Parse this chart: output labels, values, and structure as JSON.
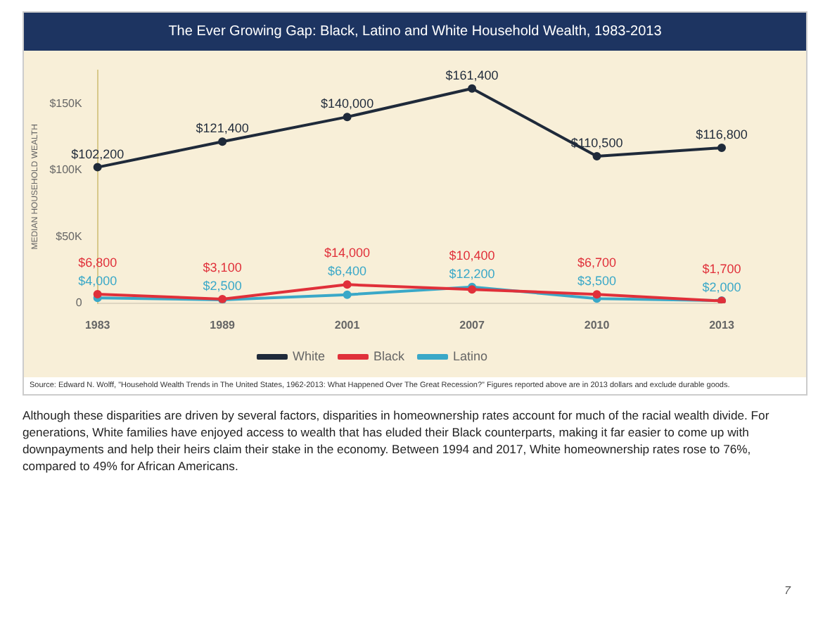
{
  "chart_data": {
    "type": "line",
    "title": "The Ever Growing Gap: Black, Latino and White Household Wealth, 1983-2013",
    "ylabel": "MEDIAN HOUSEHOLD WEALTH",
    "categories": [
      "1983",
      "1989",
      "2001",
      "2007",
      "2010",
      "2013"
    ],
    "series": [
      {
        "name": "White",
        "color": "#1f2a3a",
        "values": [
          102200,
          121400,
          140000,
          161400,
          110500,
          116800
        ],
        "value_labels": [
          "$102,200",
          "$121,400",
          "$140,000",
          "$161,400",
          "$110,500",
          "$116,800"
        ]
      },
      {
        "name": "Black",
        "color": "#e0303a",
        "values": [
          6800,
          3100,
          14000,
          10400,
          6700,
          1700
        ],
        "value_labels": [
          "$6,800",
          "$3,100",
          "$14,000",
          "$10,400",
          "$6,700",
          "$1,700"
        ]
      },
      {
        "name": "Latino",
        "color": "#3aa8c8",
        "values": [
          4000,
          2500,
          6400,
          12200,
          3500,
          2000
        ],
        "value_labels": [
          "$4,000",
          "$2,500",
          "$6,400",
          "$12,200",
          "$3,500",
          "$2,000"
        ]
      }
    ],
    "ylim": [
      0,
      175000
    ],
    "yticks": [
      {
        "value": 0,
        "label": "0"
      },
      {
        "value": 50000,
        "label": "$50K"
      },
      {
        "value": 100000,
        "label": "$100K"
      },
      {
        "value": 150000,
        "label": "$150K"
      }
    ],
    "legend": "bottom",
    "marker": "circle",
    "line_style": "solid",
    "grid": false,
    "annotations": [
      "Source: Edward N. Wolff, \"Household Wealth Trends in The United States, 1962-2013: What Happened Over The Great Recession?\" Figures reported above are in 2013 dollars and exclude durable goods.",
      "Although these disparities are driven by several factors, disparities in homeownership rates account for much of the racial wealth divide. For generations, White families have enjoyed access to wealth that has eluded their Black counterparts, making it far easier to come up with downpayments and help their heirs claim their stake in the economy. Between 1994 and 2017, White homeownership rates rose to 76%, compared to 49% for African Americans.",
      "7"
    ]
  }
}
